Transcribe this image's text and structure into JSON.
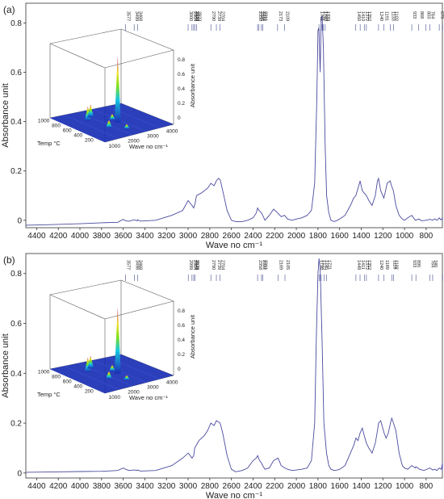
{
  "colors": {
    "spectrum": "#4a4a9e",
    "axis": "#333333",
    "peak_label": "#1f2a7a",
    "surface_low": "#1a2fb5",
    "surface_high": "#c0167a"
  },
  "chart_data": [
    {
      "type": "line",
      "panel_label": "(a)",
      "xlabel": "Wave no cm⁻¹",
      "ylabel": "Absorbance unit",
      "xlim": [
        4500,
        650
      ],
      "ylim": [
        -0.03,
        0.88
      ],
      "x_ticks": [
        "4400",
        "4200",
        "4000",
        "3800",
        "3600",
        "3400",
        "3200",
        "3000",
        "2800",
        "2600",
        "2400",
        "2200",
        "2000",
        "1800",
        "1600",
        "1400",
        "1200",
        "1000",
        "800"
      ],
      "y_ticks": [
        "0",
        "0.2",
        "0.4",
        "0.6",
        "0.8"
      ],
      "peak_labels": [
        "3577",
        "3499",
        "3468",
        "3000",
        "2964",
        "2949",
        "2939",
        "2923",
        "2790",
        "2739",
        "2704",
        "2358",
        "2345",
        "2322",
        "2311",
        "2173",
        "2109",
        "1791",
        "1762",
        "1750",
        "1733",
        "1450",
        "1410",
        "1372",
        "1352",
        "1240",
        "1191",
        "1133",
        "1103",
        "933",
        "803",
        "868",
        "764",
        "679",
        "649"
      ],
      "series": [
        {
          "x": [
            4500,
            4300,
            4000,
            3800,
            3650,
            3600,
            3577,
            3550,
            3499,
            3470,
            3468,
            3440,
            3300,
            3150,
            3050,
            3000,
            2964,
            2949,
            2935,
            2923,
            2880,
            2820,
            2790,
            2760,
            2739,
            2720,
            2704,
            2680,
            2640,
            2600,
            2560,
            2500,
            2450,
            2400,
            2370,
            2358,
            2345,
            2322,
            2311,
            2290,
            2250,
            2210,
            2173,
            2140,
            2109,
            2080,
            2040,
            2000,
            1950,
            1900,
            1860,
            1830,
            1810,
            1800,
            1791,
            1780,
            1770,
            1762,
            1750,
            1733,
            1720,
            1700,
            1680,
            1650,
            1620,
            1600,
            1550,
            1500,
            1470,
            1450,
            1430,
            1410,
            1390,
            1372,
            1352,
            1330,
            1300,
            1270,
            1250,
            1240,
            1220,
            1191,
            1175,
            1160,
            1133,
            1120,
            1103,
            1080,
            1050,
            1020,
            1000,
            970,
            933,
            900,
            868,
            840,
            803,
            780,
            764,
            740,
            720,
            700,
            679,
            665,
            649,
            650
          ],
          "y": [
            -0.02,
            -0.018,
            -0.014,
            -0.01,
            -0.008,
            0.004,
            -0.002,
            -0.004,
            0.002,
            -0.002,
            0.002,
            -0.003,
            0.0,
            0.02,
            0.04,
            0.08,
            0.06,
            0.05,
            0.07,
            0.1,
            0.11,
            0.13,
            0.15,
            0.14,
            0.16,
            0.17,
            0.165,
            0.12,
            0.04,
            0.0,
            -0.005,
            -0.005,
            0.0,
            0.01,
            0.03,
            0.05,
            0.04,
            0.03,
            0.02,
            0.0,
            0.02,
            0.045,
            0.03,
            0.015,
            0.02,
            0.005,
            0.0,
            0.005,
            0.01,
            0.02,
            0.04,
            0.15,
            0.5,
            0.77,
            0.78,
            0.6,
            0.82,
            0.83,
            0.7,
            0.3,
            0.1,
            0.03,
            0.0,
            -0.005,
            0.0,
            0.005,
            0.02,
            0.06,
            0.09,
            0.1,
            0.13,
            0.16,
            0.12,
            0.11,
            0.1,
            0.08,
            0.06,
            0.1,
            0.16,
            0.17,
            0.12,
            0.09,
            0.12,
            0.15,
            0.16,
            0.14,
            0.12,
            0.06,
            0.02,
            0.005,
            0.0,
            0.01,
            0.02,
            0.0,
            0.005,
            -0.002,
            0.0,
            0.002,
            0.004,
            0.0,
            0.006,
            0.0,
            0.01,
            0.002,
            0.008,
            0.0
          ]
        }
      ],
      "inset": {
        "type": "surface3d",
        "xlabel": "Wave no cm⁻¹",
        "ylabel": "Temp °C",
        "zlabel": "Absorbance unit",
        "x_ticks": [
          "1000",
          "2000",
          "3000",
          "4000"
        ],
        "y_ticks": [
          "200",
          "400",
          "600",
          "800",
          "1000"
        ],
        "z_ticks": [
          "0",
          "0.2",
          "0.4",
          "0.6",
          "0.8"
        ]
      }
    },
    {
      "type": "line",
      "panel_label": "(b)",
      "xlabel": "Wave no cm⁻¹",
      "ylabel": "Absorbance unit",
      "xlim": [
        4500,
        650
      ],
      "ylim": [
        -0.02,
        0.88
      ],
      "x_ticks": [
        "4400",
        "4200",
        "4000",
        "3800",
        "3600",
        "3400",
        "3200",
        "3000",
        "2800",
        "2600",
        "2400",
        "2200",
        "2000",
        "1800",
        "1600",
        "1400",
        "1200",
        "1000",
        "800"
      ],
      "y_ticks": [
        "0",
        "0.2",
        "0.4",
        "0.6",
        "0.8"
      ],
      "peak_labels": [
        "3577",
        "3498",
        "3468",
        "2999",
        "2964",
        "2948",
        "2939",
        "2790",
        "2739",
        "2704",
        "2358",
        "2322",
        "2311",
        "2169",
        "2105",
        "1790",
        "1772",
        "1745",
        "1721",
        "1449",
        "1411",
        "1372",
        "1352",
        "1240",
        "1189",
        "1118",
        "1102",
        "933",
        "895",
        "764",
        "740",
        "649"
      ],
      "series": [
        {
          "x": [
            4500,
            4300,
            4000,
            3800,
            3650,
            3600,
            3577,
            3550,
            3498,
            3470,
            3468,
            3440,
            3300,
            3150,
            3050,
            2999,
            2964,
            2948,
            2939,
            2900,
            2850,
            2820,
            2790,
            2760,
            2739,
            2720,
            2704,
            2680,
            2640,
            2600,
            2560,
            2500,
            2450,
            2400,
            2370,
            2358,
            2340,
            2322,
            2311,
            2290,
            2250,
            2210,
            2169,
            2140,
            2105,
            2080,
            2040,
            2000,
            1950,
            1900,
            1860,
            1830,
            1815,
            1800,
            1790,
            1780,
            1772,
            1760,
            1745,
            1721,
            1700,
            1680,
            1650,
            1620,
            1600,
            1550,
            1500,
            1470,
            1449,
            1430,
            1411,
            1390,
            1372,
            1352,
            1330,
            1300,
            1270,
            1250,
            1240,
            1220,
            1189,
            1170,
            1150,
            1130,
            1118,
            1102,
            1080,
            1050,
            1020,
            1000,
            970,
            933,
            900,
            895,
            860,
            820,
            764,
            740,
            720,
            700,
            680,
            660,
            649,
            650
          ],
          "y": [
            0.003,
            0.004,
            0.006,
            0.007,
            0.01,
            0.02,
            0.015,
            0.01,
            0.012,
            0.01,
            0.012,
            0.008,
            0.01,
            0.03,
            0.06,
            0.08,
            0.06,
            0.07,
            0.1,
            0.13,
            0.15,
            0.17,
            0.2,
            0.19,
            0.21,
            0.205,
            0.2,
            0.16,
            0.07,
            0.015,
            0.005,
            0.01,
            0.02,
            0.05,
            0.06,
            0.07,
            0.05,
            0.04,
            0.03,
            0.015,
            0.02,
            0.05,
            0.06,
            0.03,
            0.02,
            0.015,
            0.01,
            0.012,
            0.015,
            0.02,
            0.05,
            0.2,
            0.55,
            0.8,
            0.86,
            0.82,
            0.7,
            0.5,
            0.2,
            0.08,
            0.03,
            0.015,
            0.01,
            0.012,
            0.015,
            0.03,
            0.08,
            0.11,
            0.14,
            0.13,
            0.16,
            0.18,
            0.15,
            0.12,
            0.1,
            0.08,
            0.12,
            0.17,
            0.2,
            0.21,
            0.16,
            0.14,
            0.16,
            0.2,
            0.22,
            0.2,
            0.17,
            0.08,
            0.03,
            0.02,
            0.015,
            0.03,
            0.02,
            0.025,
            0.015,
            0.01,
            0.02,
            0.012,
            0.015,
            0.01,
            0.02,
            0.015,
            0.04,
            0.01
          ]
        }
      ],
      "inset": {
        "type": "surface3d",
        "xlabel": "Wave no cm⁻¹",
        "ylabel": "Temp °C",
        "zlabel": "Absorbance unit",
        "x_ticks": [
          "1000",
          "2000",
          "3000",
          "4000"
        ],
        "y_ticks": [
          "200",
          "400",
          "600",
          "800",
          "1000"
        ],
        "z_ticks": [
          "0",
          "0.2",
          "0.4",
          "0.6",
          "0.8"
        ]
      }
    }
  ]
}
